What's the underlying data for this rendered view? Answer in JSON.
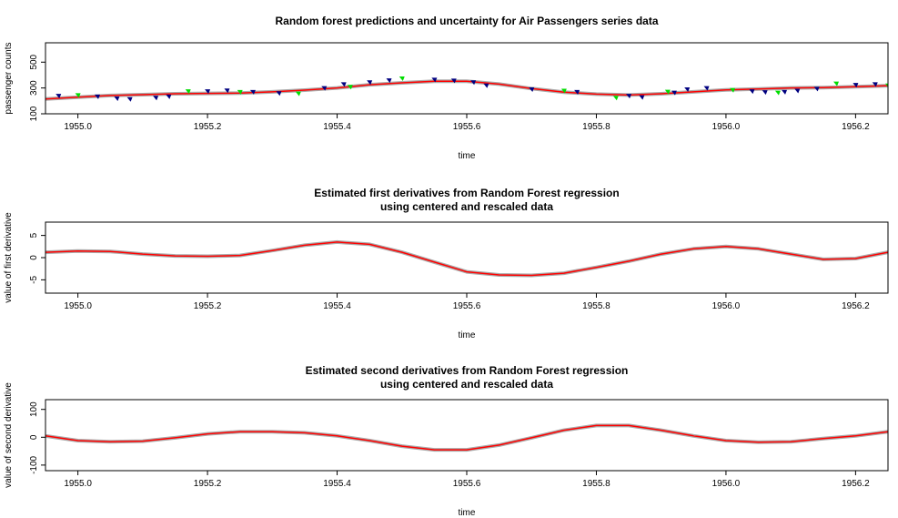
{
  "chart_data": [
    {
      "type": "line",
      "title": "Random forest predictions and uncertainty for Air Passengers series data",
      "xlabel": "time",
      "ylabel": "passenger counts",
      "xlim": [
        1954.95,
        1956.25
      ],
      "ylim": [
        100,
        650
      ],
      "xticks": [
        "1955.0",
        "1955.2",
        "1955.4",
        "1955.6",
        "1955.8",
        "1956.0",
        "1956.2"
      ],
      "xtick_values": [
        1955.0,
        1955.2,
        1955.4,
        1955.6,
        1955.8,
        1956.0,
        1956.2
      ],
      "yticks": [
        "100",
        "300",
        "500"
      ],
      "ytick_values": [
        100,
        300,
        500
      ],
      "series": [
        {
          "style": "line",
          "color": "#ff0000",
          "x": [
            1954.95,
            1955.0,
            1955.05,
            1955.1,
            1955.15,
            1955.2,
            1955.25,
            1955.3,
            1955.35,
            1955.4,
            1955.45,
            1955.5,
            1955.55,
            1955.6,
            1955.65,
            1955.7,
            1955.75,
            1955.8,
            1955.85,
            1955.9,
            1955.95,
            1956.0,
            1956.05,
            1956.1,
            1956.15,
            1956.2,
            1956.25
          ],
          "y": [
            215,
            228,
            242,
            248,
            255,
            258,
            260,
            270,
            283,
            300,
            325,
            340,
            352,
            352,
            330,
            295,
            268,
            252,
            245,
            255,
            270,
            285,
            292,
            300,
            303,
            310,
            318
          ]
        },
        {
          "style": "markers",
          "color": "#000080",
          "x": [
            1954.97,
            1955.03,
            1955.06,
            1955.08,
            1955.12,
            1955.14,
            1955.2,
            1955.23,
            1955.27,
            1955.31,
            1955.38,
            1955.41,
            1955.45,
            1955.48,
            1955.55,
            1955.58,
            1955.61,
            1955.63,
            1955.7,
            1955.77,
            1955.85,
            1955.87,
            1955.92,
            1955.94,
            1955.97,
            1956.04,
            1956.06,
            1956.09,
            1956.11,
            1956.14,
            1956.2,
            1956.23
          ],
          "y": [
            240,
            235,
            220,
            215,
            225,
            235,
            275,
            282,
            270,
            260,
            300,
            330,
            345,
            360,
            365,
            358,
            345,
            320,
            290,
            270,
            240,
            230,
            265,
            290,
            300,
            275,
            268,
            270,
            280,
            295,
            325,
            330
          ]
        },
        {
          "style": "markers",
          "color": "#00dd00",
          "x": [
            1955.0,
            1955.17,
            1955.25,
            1955.34,
            1955.42,
            1955.5,
            1955.75,
            1955.83,
            1955.91,
            1956.01,
            1956.08,
            1956.17,
            1956.25
          ],
          "y": [
            245,
            275,
            270,
            258,
            310,
            375,
            280,
            225,
            272,
            285,
            265,
            335,
            320
          ]
        }
      ]
    },
    {
      "type": "line",
      "title": "Estimated first  derivatives from Random Forest regression\nusing centered and rescaled data",
      "xlabel": "time",
      "ylabel": "value of first derivative",
      "xlim": [
        1954.95,
        1956.25
      ],
      "ylim": [
        -8,
        8
      ],
      "xticks": [
        "1955.0",
        "1955.2",
        "1955.4",
        "1955.6",
        "1955.8",
        "1956.0",
        "1956.2"
      ],
      "xtick_values": [
        1955.0,
        1955.2,
        1955.4,
        1955.6,
        1955.8,
        1956.0,
        1956.2
      ],
      "yticks": [
        "-5",
        "0",
        "5"
      ],
      "ytick_values": [
        -5,
        0,
        5
      ],
      "series": [
        {
          "style": "line",
          "color": "#ff0000",
          "x": [
            1954.95,
            1955.0,
            1955.05,
            1955.1,
            1955.15,
            1955.2,
            1955.25,
            1955.3,
            1955.35,
            1955.4,
            1955.45,
            1955.5,
            1955.55,
            1955.6,
            1955.65,
            1955.7,
            1955.75,
            1955.8,
            1955.85,
            1955.9,
            1955.95,
            1956.0,
            1956.05,
            1956.1,
            1956.15,
            1956.2,
            1956.25
          ],
          "y": [
            1.2,
            1.5,
            1.4,
            0.8,
            0.4,
            0.3,
            0.5,
            1.6,
            2.8,
            3.5,
            3.0,
            1.2,
            -1.0,
            -3.2,
            -3.9,
            -4.0,
            -3.5,
            -2.2,
            -0.8,
            0.8,
            2.0,
            2.5,
            2.0,
            0.8,
            -0.4,
            -0.2,
            1.2
          ]
        }
      ]
    },
    {
      "type": "line",
      "title": "Estimated second derivatives from Random Forest regression\nusing centered and rescaled data",
      "xlabel": "time",
      "ylabel": "value of second derivative",
      "xlim": [
        1954.95,
        1956.25
      ],
      "ylim": [
        -120,
        135
      ],
      "xticks": [
        "1955.0",
        "1955.2",
        "1955.4",
        "1955.6",
        "1955.8",
        "1956.0",
        "1956.2"
      ],
      "xtick_values": [
        1955.0,
        1955.2,
        1955.4,
        1955.6,
        1955.8,
        1956.0,
        1956.2
      ],
      "yticks": [
        "-100",
        "0",
        "100"
      ],
      "ytick_values": [
        -100,
        0,
        100
      ],
      "series": [
        {
          "style": "line",
          "color": "#ff0000",
          "x": [
            1954.95,
            1955.0,
            1955.05,
            1955.1,
            1955.15,
            1955.2,
            1955.25,
            1955.3,
            1955.35,
            1955.4,
            1955.45,
            1955.5,
            1955.55,
            1955.6,
            1955.65,
            1955.7,
            1955.75,
            1955.8,
            1955.85,
            1955.9,
            1955.95,
            1956.0,
            1956.05,
            1956.1,
            1956.15,
            1956.2,
            1956.25
          ],
          "y": [
            5,
            -12,
            -16,
            -14,
            -2,
            12,
            20,
            20,
            16,
            5,
            -12,
            -32,
            -45,
            -45,
            -28,
            -2,
            25,
            42,
            42,
            25,
            5,
            -12,
            -18,
            -16,
            -5,
            5,
            20
          ]
        }
      ]
    }
  ]
}
